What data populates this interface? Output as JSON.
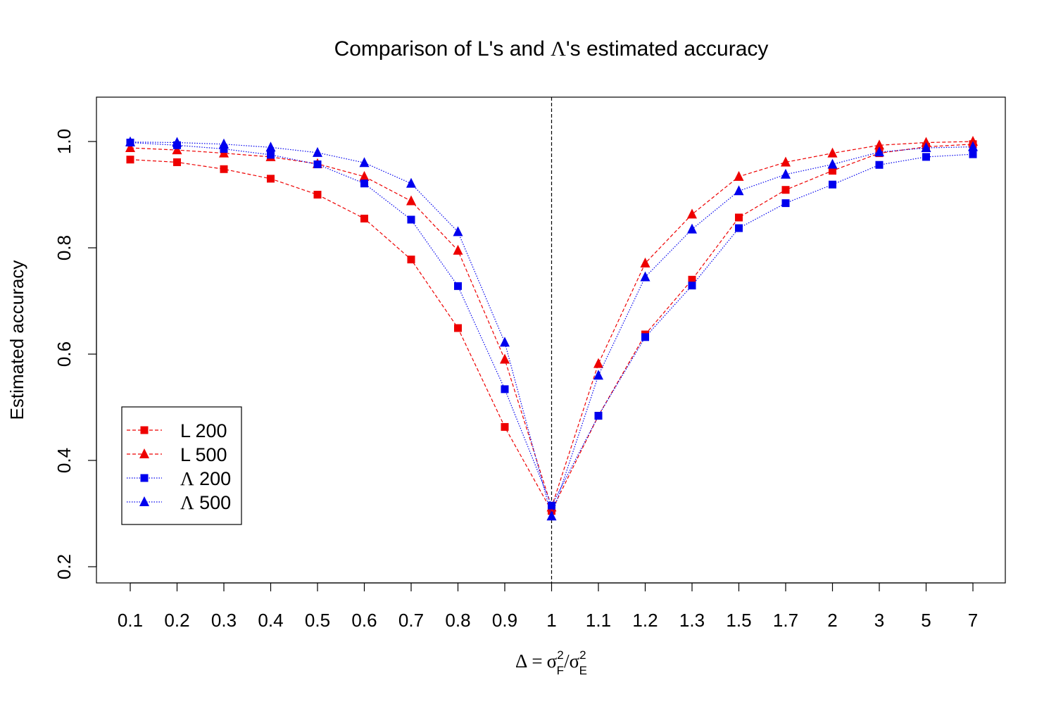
{
  "chart_data": {
    "type": "line",
    "title": "Comparison of L's and Λ's estimated accuracy",
    "title_parts": {
      "pre": "Comparison of L's and ",
      "greek": "Λ",
      "post": "'s estimated accuracy"
    },
    "ylabel": "Estimated accuracy",
    "xlabel": "Δ = σF²/σE²",
    "xlabel_parts": {
      "delta": "Δ",
      "eq": "=",
      "sigma": "σ",
      "sup": "2",
      "sub_f": "F",
      "slash": "/",
      "sub_e": "E"
    },
    "categories": [
      "0.1",
      "0.2",
      "0.3",
      "0.4",
      "0.5",
      "0.6",
      "0.7",
      "0.8",
      "0.9",
      "1",
      "1.1",
      "1.2",
      "1.3",
      "1.5",
      "1.7",
      "2",
      "3",
      "5",
      "7"
    ],
    "ylim": [
      0.2,
      1.08
    ],
    "yticks": [
      "0.2",
      "0.4",
      "0.6",
      "0.8",
      "1.0"
    ],
    "vline_at": "1",
    "legend_position": "bottom-left",
    "colors": {
      "red": "#ee0000",
      "blue": "#0000ee"
    },
    "series": [
      {
        "name": "L 200",
        "name_prefix": "L",
        "name_num": "200",
        "color": "#ee0000",
        "marker": "square",
        "dash": "dashed",
        "values": [
          0.966,
          0.961,
          0.948,
          0.93,
          0.9,
          0.855,
          0.778,
          0.649,
          0.463,
          0.305,
          0.484,
          0.637,
          0.74,
          0.857,
          0.909,
          0.945,
          0.978,
          0.99,
          0.995
        ]
      },
      {
        "name": "L 500",
        "name_prefix": "L",
        "name_num": "500",
        "color": "#ee0000",
        "marker": "triangle",
        "dash": "dashed",
        "values": [
          0.988,
          0.984,
          0.978,
          0.971,
          0.958,
          0.934,
          0.888,
          0.795,
          0.59,
          0.312,
          0.582,
          0.771,
          0.863,
          0.934,
          0.961,
          0.978,
          0.993,
          0.998,
          1.0
        ]
      },
      {
        "name": "Λ 200",
        "name_prefix": "Λ",
        "name_num": "200",
        "color": "#0000ee",
        "marker": "square",
        "dash": "dotted",
        "values": [
          0.998,
          0.993,
          0.986,
          0.975,
          0.957,
          0.921,
          0.853,
          0.728,
          0.534,
          0.315,
          0.484,
          0.632,
          0.729,
          0.837,
          0.884,
          0.919,
          0.956,
          0.971,
          0.976
        ]
      },
      {
        "name": "Λ 500",
        "name_prefix": "Λ",
        "name_num": "500",
        "color": "#0000ee",
        "marker": "triangle",
        "dash": "dotted",
        "values": [
          0.999,
          0.998,
          0.995,
          0.989,
          0.979,
          0.96,
          0.921,
          0.83,
          0.622,
          0.295,
          0.56,
          0.745,
          0.835,
          0.907,
          0.938,
          0.957,
          0.98,
          0.988,
          0.99
        ]
      }
    ]
  }
}
